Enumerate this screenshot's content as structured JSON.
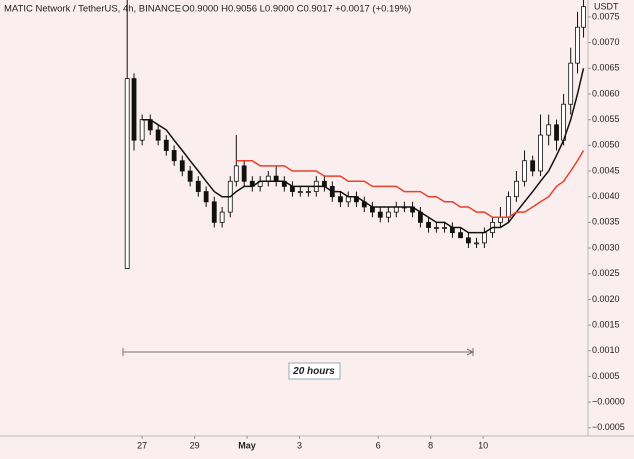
{
  "chart_data": {
    "type": "candlestick",
    "title": "MATIC Network / TetherUS, 4h, BINANCE",
    "ohlc_text": "O0.9000 H0.9056 L0.9000 C0.9017 +0.0017 (+0.19%)",
    "currency": "USDT",
    "annotation": "20 hours",
    "xlim": [
      21.58,
      44.0
    ],
    "xticks": [
      27,
      29,
      {
        "value": 31,
        "label": "May"
      },
      {
        "value": 33,
        "label": "3"
      },
      {
        "value": 36,
        "label": "6"
      },
      {
        "value": 38,
        "label": "8"
      },
      {
        "value": 40,
        "label": "10"
      }
    ],
    "ylim": [
      -0.00066,
      0.00783
    ],
    "yticks": [
      0.0075,
      {
        "value": 0.007,
        "label": "0.0070"
      },
      0.0065,
      {
        "value": 0.006,
        "label": "0.0060"
      },
      0.0055,
      {
        "value": 0.005,
        "label": "0.0050"
      },
      0.0045,
      {
        "value": 0.004,
        "label": "0.0040"
      },
      0.0035,
      {
        "value": 0.003,
        "label": "0.0030"
      },
      0.0025,
      {
        "value": 0.002,
        "label": "0.0020"
      },
      0.0015,
      {
        "value": 0.001,
        "label": "0.0010"
      },
      0.0005,
      {
        "value": 0,
        "label": "−0.0000"
      },
      {
        "value": -0.0005,
        "label": "−0.0005"
      }
    ],
    "up_color": "#ffffff",
    "down_color": "#111111",
    "x": [
      26.43,
      26.69,
      27.0,
      27.31,
      27.61,
      27.92,
      28.22,
      28.53,
      28.83,
      29.14,
      29.44,
      29.75,
      30.05,
      30.36,
      30.59,
      30.89,
      31.2,
      31.5,
      31.81,
      32.11,
      32.42,
      32.73,
      33.03,
      33.34,
      33.64,
      33.95,
      34.25,
      34.56,
      34.86,
      35.17,
      35.47,
      35.78,
      36.08,
      36.39,
      36.69,
      37.0,
      37.31,
      37.61,
      37.92,
      38.22,
      38.53,
      38.83,
      39.14,
      39.44,
      39.75,
      40.05,
      40.36,
      40.66,
      40.97,
      41.27,
      41.58,
      41.89,
      42.19,
      42.5,
      42.8,
      43.07,
      43.34,
      43.6,
      43.83
    ],
    "open": [
      0.0026,
      0.0063,
      0.0051,
      0.0055,
      0.0053,
      0.0051,
      0.0049,
      0.0047,
      0.0045,
      0.0043,
      0.0041,
      0.0039,
      0.0035,
      0.0037,
      0.0043,
      0.0046,
      0.0043,
      0.0042,
      0.0043,
      0.0044,
      0.0043,
      0.0042,
      0.0041,
      0.0041,
      0.0041,
      0.0043,
      0.0042,
      0.004,
      0.0039,
      0.004,
      0.0039,
      0.0038,
      0.0037,
      0.0036,
      0.0037,
      0.0038,
      0.0038,
      0.0037,
      0.0035,
      0.0034,
      0.0034,
      0.0034,
      0.0033,
      0.0032,
      0.0031,
      0.0031,
      0.0033,
      0.0035,
      0.0036,
      0.004,
      0.0043,
      0.0047,
      0.0045,
      0.0052,
      0.0054,
      0.0051,
      0.0058,
      0.0066,
      0.0073
    ],
    "high": [
      0.0079,
      0.0064,
      0.0056,
      0.0056,
      0.0054,
      0.0052,
      0.005,
      0.0048,
      0.0046,
      0.0044,
      0.0042,
      0.004,
      0.0038,
      0.0044,
      0.0052,
      0.0047,
      0.0044,
      0.0044,
      0.0045,
      0.0046,
      0.0044,
      0.0043,
      0.0042,
      0.0042,
      0.0044,
      0.0044,
      0.0043,
      0.0041,
      0.0041,
      0.0041,
      0.004,
      0.0039,
      0.0038,
      0.0038,
      0.0039,
      0.0039,
      0.0039,
      0.0038,
      0.0036,
      0.0035,
      0.0035,
      0.0035,
      0.0034,
      0.0033,
      0.0032,
      0.0034,
      0.0036,
      0.0038,
      0.0041,
      0.0045,
      0.0049,
      0.0048,
      0.0056,
      0.0056,
      0.0055,
      0.006,
      0.0069,
      0.0076,
      0.0079
    ],
    "low": [
      0.0026,
      0.0049,
      0.005,
      0.0052,
      0.005,
      0.0048,
      0.0046,
      0.0044,
      0.0042,
      0.004,
      0.0038,
      0.0034,
      0.0034,
      0.0036,
      0.0042,
      0.0042,
      0.0041,
      0.0041,
      0.0042,
      0.0042,
      0.0041,
      0.004,
      0.004,
      0.004,
      0.004,
      0.0041,
      0.0039,
      0.0038,
      0.0038,
      0.0038,
      0.0037,
      0.0036,
      0.0035,
      0.0035,
      0.0036,
      0.0037,
      0.0036,
      0.0034,
      0.0033,
      0.0033,
      0.0033,
      0.0032,
      0.0032,
      0.003,
      0.003,
      0.003,
      0.0032,
      0.0034,
      0.0035,
      0.0039,
      0.0042,
      0.0044,
      0.0044,
      0.005,
      0.0049,
      0.005,
      0.0056,
      0.0064,
      0.0071
    ],
    "close": [
      0.0063,
      0.0051,
      0.0055,
      0.0053,
      0.0051,
      0.0049,
      0.0047,
      0.0045,
      0.0043,
      0.0041,
      0.0039,
      0.0035,
      0.0037,
      0.0043,
      0.0046,
      0.0043,
      0.0042,
      0.0043,
      0.0044,
      0.0043,
      0.0042,
      0.0041,
      0.0041,
      0.0041,
      0.0043,
      0.0042,
      0.004,
      0.0039,
      0.004,
      0.0039,
      0.0038,
      0.0037,
      0.0036,
      0.0037,
      0.0038,
      0.0038,
      0.0037,
      0.0035,
      0.0034,
      0.0034,
      0.0034,
      0.0033,
      0.0032,
      0.0031,
      0.0031,
      0.0033,
      0.0035,
      0.0036,
      0.004,
      0.0043,
      0.0047,
      0.0045,
      0.0052,
      0.0054,
      0.0051,
      0.0058,
      0.0066,
      0.0073,
      0.0077
    ],
    "series": [
      {
        "color": "#111111",
        "values": [
          null,
          null,
          0.0055,
          0.0055,
          0.0054,
          0.0053,
          0.0051,
          0.0049,
          0.0047,
          0.0045,
          0.0043,
          0.0041,
          0.004,
          0.004,
          0.0041,
          0.0042,
          0.0042,
          0.0043,
          0.0043,
          0.0043,
          0.0043,
          0.0042,
          0.0042,
          0.0042,
          0.0042,
          0.0042,
          0.0041,
          0.0041,
          0.004,
          0.004,
          0.0039,
          0.0038,
          0.0038,
          0.0038,
          0.0038,
          0.0038,
          0.0038,
          0.0037,
          0.0036,
          0.0035,
          0.0035,
          0.0034,
          0.0034,
          0.0033,
          0.0033,
          0.0033,
          0.0034,
          0.0034,
          0.0035,
          0.0037,
          0.0039,
          0.0041,
          0.0043,
          0.0045,
          0.0048,
          0.0051,
          0.0055,
          0.006,
          0.0065
        ]
      },
      {
        "color": "#e8412c",
        "values": [
          null,
          null,
          null,
          null,
          null,
          null,
          null,
          null,
          null,
          null,
          null,
          null,
          null,
          null,
          0.0047,
          0.0047,
          0.0047,
          0.0046,
          0.0046,
          0.0046,
          0.0046,
          0.0045,
          0.0045,
          0.0045,
          0.0045,
          0.0044,
          0.0044,
          0.0044,
          0.0043,
          0.0043,
          0.0043,
          0.0042,
          0.0042,
          0.0042,
          0.0042,
          0.0041,
          0.0041,
          0.0041,
          0.004,
          0.004,
          0.0039,
          0.0039,
          0.0038,
          0.0038,
          0.0037,
          0.0037,
          0.0036,
          0.0036,
          0.0036,
          0.0037,
          0.0037,
          0.0038,
          0.0039,
          0.004,
          0.0042,
          0.0043,
          0.0045,
          0.0047,
          0.0049
        ]
      }
    ]
  }
}
